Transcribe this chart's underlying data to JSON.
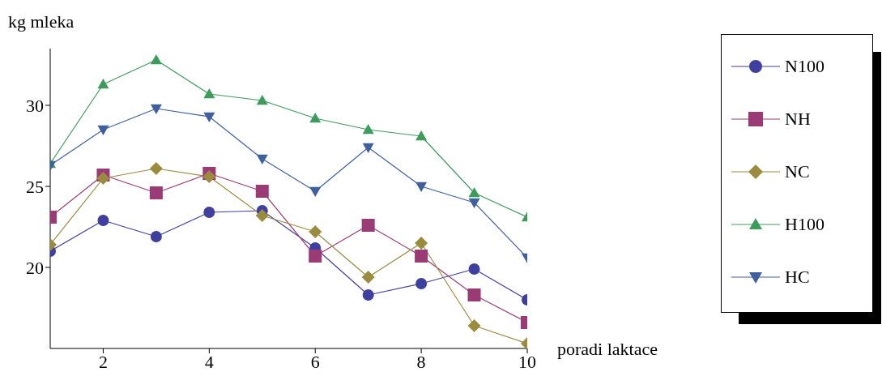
{
  "chart_data": {
    "type": "line",
    "xlabel": "poradi laktace",
    "ylabel": "kg mleka",
    "x": [
      1,
      2,
      3,
      4,
      5,
      6,
      7,
      8,
      9,
      10
    ],
    "xlim": [
      1,
      10
    ],
    "xticks": [
      2,
      4,
      6,
      8,
      10
    ],
    "ylim": [
      15,
      33.5
    ],
    "yticks": [
      20,
      25,
      30
    ],
    "grid": false,
    "legend": "right",
    "series": [
      {
        "name": "N100",
        "color": "#3f3f9f",
        "marker": "circle",
        "values": [
          21.0,
          22.9,
          21.9,
          23.4,
          23.5,
          21.2,
          18.3,
          19.0,
          19.9,
          18.0
        ]
      },
      {
        "name": "NH",
        "color": "#9b3b75",
        "marker": "square",
        "values": [
          23.1,
          25.7,
          24.6,
          25.8,
          24.7,
          20.7,
          22.6,
          20.7,
          18.3,
          16.6
        ]
      },
      {
        "name": "NC",
        "color": "#9b8b3f",
        "marker": "diamond",
        "values": [
          21.4,
          25.5,
          26.1,
          25.6,
          23.2,
          22.2,
          19.4,
          21.5,
          16.4,
          15.3
        ]
      },
      {
        "name": "H100",
        "color": "#3d9b5b",
        "marker": "triangle",
        "values": [
          26.4,
          31.3,
          32.8,
          30.7,
          30.3,
          29.2,
          28.5,
          28.1,
          24.6,
          23.1
        ]
      },
      {
        "name": "HC",
        "color": "#3f5f9f",
        "marker": "triangle-down",
        "values": [
          26.3,
          28.5,
          29.8,
          29.3,
          26.7,
          24.7,
          27.4,
          25.0,
          24.0,
          20.6
        ]
      }
    ]
  }
}
